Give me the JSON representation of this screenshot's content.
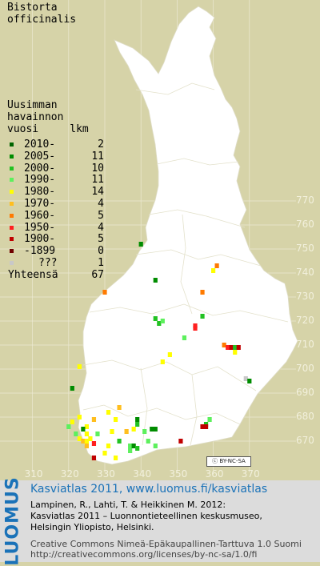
{
  "title": {
    "line1": "Bistorta",
    "line2": "officinalis"
  },
  "legend": {
    "heading": [
      "Uusimman",
      "havainnon",
      "vuosi     lkm"
    ],
    "rows": [
      {
        "label": "2010-",
        "count": "2",
        "color": "#006400"
      },
      {
        "label": "2005-",
        "count": "11",
        "color": "#008c00"
      },
      {
        "label": "2000-",
        "count": "10",
        "color": "#22c222"
      },
      {
        "label": "1990-",
        "count": "11",
        "color": "#5df05d"
      },
      {
        "label": "1980-",
        "count": "14",
        "color": "#ffff00"
      },
      {
        "label": "1970-",
        "count": "4",
        "color": "#ffbe1e"
      },
      {
        "label": "1960-",
        "count": "5",
        "color": "#ff7a00"
      },
      {
        "label": "1950-",
        "count": "4",
        "color": "#ff2020"
      },
      {
        "label": "1900-",
        "count": "5",
        "color": "#c00000"
      },
      {
        "label": "-1899",
        "count": "0",
        "color": "#700000"
      },
      {
        "label": "???",
        "count": "1",
        "color": "#c8c8c8"
      }
    ],
    "total_label": "Yhteensä",
    "total_count": "67"
  },
  "axis": {
    "y_ticks": [
      "770",
      "760",
      "750",
      "740",
      "730",
      "720",
      "710",
      "700",
      "690",
      "680",
      "670"
    ],
    "x_ticks": [
      "310",
      "320",
      "330",
      "340",
      "350",
      "360",
      "370"
    ]
  },
  "map_colors": {
    "background": "#d6d3a8",
    "land": "#ffffff",
    "grid": "#ebe9d2"
  },
  "license_badge": "BY-NC-SA",
  "footer": {
    "logo": "LUOMUS",
    "atlas": "Kasviatlas 2011, www.luomus.fi/kasviatlas",
    "cite1": "Lampinen, R., Lahti, T. & Heikkinen M. 2012:",
    "cite2": "Kasviatlas 2011 – Luonnontieteellinen keskusmuseo,",
    "cite3": "Helsingin Yliopisto, Helsinki.",
    "cc1": "Creative Commons Nimeä-Epäkaupallinen-Tarttuva 1.0 Suomi",
    "cc2": "http://creativecommons.org/licenses/by-nc-sa/1.0/fi"
  },
  "observations": [
    {
      "e": 340,
      "n": 752,
      "c": 1
    },
    {
      "e": 344,
      "n": 737,
      "c": 1
    },
    {
      "e": 361,
      "n": 743,
      "c": 6
    },
    {
      "e": 360,
      "n": 741,
      "c": 4
    },
    {
      "e": 330,
      "n": 732,
      "c": 6
    },
    {
      "e": 357,
      "n": 732,
      "c": 6
    },
    {
      "e": 344,
      "n": 721,
      "c": 2
    },
    {
      "e": 345,
      "n": 719,
      "c": 2
    },
    {
      "e": 346,
      "n": 720,
      "c": 3
    },
    {
      "e": 357,
      "n": 722,
      "c": 2
    },
    {
      "e": 355,
      "n": 718,
      "c": 7
    },
    {
      "e": 355,
      "n": 717,
      "c": 7
    },
    {
      "e": 352,
      "n": 713,
      "c": 3
    },
    {
      "e": 363,
      "n": 710,
      "c": 6
    },
    {
      "e": 364,
      "n": 709,
      "c": 7
    },
    {
      "e": 365,
      "n": 709,
      "c": 8
    },
    {
      "e": 366,
      "n": 709,
      "c": 2
    },
    {
      "e": 367,
      "n": 709,
      "c": 8
    },
    {
      "e": 366,
      "n": 707,
      "c": 4
    },
    {
      "e": 348,
      "n": 706,
      "c": 4
    },
    {
      "e": 346,
      "n": 703,
      "c": 4
    },
    {
      "e": 323,
      "n": 701,
      "c": 4
    },
    {
      "e": 369,
      "n": 696,
      "c": 10
    },
    {
      "e": 370,
      "n": 695,
      "c": 1
    },
    {
      "e": 321,
      "n": 692,
      "c": 1
    },
    {
      "e": 334,
      "n": 684,
      "c": 5
    },
    {
      "e": 331,
      "n": 682,
      "c": 4
    },
    {
      "e": 327,
      "n": 679,
      "c": 5
    },
    {
      "e": 339,
      "n": 679,
      "c": 1
    },
    {
      "e": 339,
      "n": 677,
      "c": 2
    },
    {
      "e": 338,
      "n": 675,
      "c": 4
    },
    {
      "e": 336,
      "n": 674,
      "c": 5
    },
    {
      "e": 332,
      "n": 674,
      "c": 4
    },
    {
      "e": 325,
      "n": 676,
      "c": 4
    },
    {
      "e": 324,
      "n": 675,
      "c": 1
    },
    {
      "e": 322,
      "n": 673,
      "c": 3
    },
    {
      "e": 325,
      "n": 673,
      "c": 4
    },
    {
      "e": 328,
      "n": 673,
      "c": 3
    },
    {
      "e": 341,
      "n": 674,
      "c": 3
    },
    {
      "e": 343,
      "n": 675,
      "c": 1
    },
    {
      "e": 344,
      "n": 675,
      "c": 1
    },
    {
      "e": 359,
      "n": 679,
      "c": 3
    },
    {
      "e": 358,
      "n": 677,
      "c": 2
    },
    {
      "e": 357,
      "n": 676,
      "c": 8
    },
    {
      "e": 358,
      "n": 676,
      "c": 8
    },
    {
      "e": 323,
      "n": 671,
      "c": 4
    },
    {
      "e": 324,
      "n": 670,
      "c": 5
    },
    {
      "e": 325,
      "n": 670,
      "c": 4
    },
    {
      "e": 326,
      "n": 671,
      "c": 4
    },
    {
      "e": 325,
      "n": 668,
      "c": 5
    },
    {
      "e": 327,
      "n": 669,
      "c": 7
    },
    {
      "e": 331,
      "n": 668,
      "c": 4
    },
    {
      "e": 334,
      "n": 670,
      "c": 2
    },
    {
      "e": 337,
      "n": 668,
      "c": 3
    },
    {
      "e": 338,
      "n": 668,
      "c": 1
    },
    {
      "e": 339,
      "n": 667,
      "c": 2
    },
    {
      "e": 342,
      "n": 670,
      "c": 3
    },
    {
      "e": 351,
      "n": 670,
      "c": 8
    },
    {
      "e": 333,
      "n": 663,
      "c": 4
    },
    {
      "e": 327,
      "n": 663,
      "c": 8
    },
    {
      "e": 323,
      "n": 680,
      "c": 4
    },
    {
      "e": 321,
      "n": 678,
      "c": 4
    },
    {
      "e": 333,
      "n": 679,
      "c": 4
    },
    {
      "e": 344,
      "n": 668,
      "c": 3
    },
    {
      "e": 337,
      "n": 666,
      "c": 3
    },
    {
      "e": 330,
      "n": 665,
      "c": 4
    },
    {
      "e": 320,
      "n": 676,
      "c": 3
    }
  ]
}
